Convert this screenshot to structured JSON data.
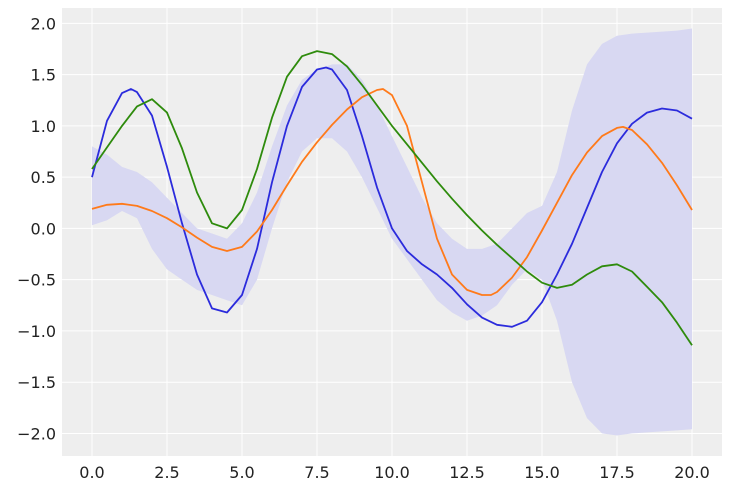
{
  "chart_data": {
    "type": "line",
    "title": "",
    "xlabel": "",
    "ylabel": "",
    "xlim": [
      -1.0,
      21.0
    ],
    "ylim": [
      -2.22,
      2.15
    ],
    "grid": true,
    "x_ticks": [
      0,
      2.5,
      5,
      7.5,
      10,
      12.5,
      15,
      17.5,
      20
    ],
    "x_tick_labels": [
      "0.0",
      "2.5",
      "5.0",
      "7.5",
      "10.0",
      "12.5",
      "15.0",
      "17.5",
      "20.0"
    ],
    "y_ticks": [
      2.0,
      1.5,
      1.0,
      0.5,
      0.0,
      -0.5,
      -1.0,
      -1.5,
      -2.0
    ],
    "y_tick_labels": [
      "2.0",
      "1.5",
      "1.0",
      "0.5",
      "0.0",
      "−0.5",
      "−1.0",
      "−1.5",
      "−2.0"
    ],
    "band": {
      "color": "#d8d8f2",
      "x": [
        0,
        0.5,
        1.0,
        1.5,
        2.0,
        2.5,
        3.0,
        3.5,
        4.0,
        4.5,
        5.0,
        5.5,
        6.0,
        6.5,
        7.0,
        7.5,
        8.0,
        8.5,
        9.0,
        9.5,
        10.0,
        10.5,
        11.0,
        11.5,
        12.0,
        12.5,
        13.0,
        13.5,
        14.0,
        14.5,
        15.0,
        15.5,
        16.0,
        16.5,
        17.0,
        17.5,
        18.0,
        18.5,
        19.0,
        19.5,
        20.0
      ],
      "upper": [
        0.8,
        0.72,
        0.6,
        0.55,
        0.45,
        0.3,
        0.15,
        0.0,
        -0.05,
        -0.1,
        0.05,
        0.35,
        0.8,
        1.2,
        1.45,
        1.55,
        1.6,
        1.6,
        1.45,
        1.2,
        0.9,
        0.6,
        0.3,
        0.05,
        -0.1,
        -0.2,
        -0.2,
        -0.15,
        0.0,
        0.15,
        0.22,
        0.55,
        1.15,
        1.6,
        1.8,
        1.88,
        1.9,
        1.91,
        1.92,
        1.93,
        1.95
      ],
      "lower": [
        0.03,
        0.08,
        0.17,
        0.1,
        -0.2,
        -0.4,
        -0.5,
        -0.6,
        -0.65,
        -0.7,
        -0.75,
        -0.5,
        0.0,
        0.45,
        0.75,
        0.88,
        0.88,
        0.75,
        0.5,
        0.2,
        -0.1,
        -0.3,
        -0.5,
        -0.7,
        -0.82,
        -0.9,
        -0.85,
        -0.75,
        -0.55,
        -0.4,
        -0.5,
        -0.9,
        -1.5,
        -1.85,
        -2.0,
        -2.02,
        -2.0,
        -1.99,
        -1.98,
        -1.97,
        -1.96
      ]
    },
    "series": [
      {
        "color": "#2b2bdc",
        "x": [
          0,
          0.5,
          1.0,
          1.3,
          1.5,
          2.0,
          2.5,
          3.0,
          3.5,
          4.0,
          4.5,
          5.0,
          5.5,
          6.0,
          6.5,
          7.0,
          7.5,
          7.8,
          8.0,
          8.5,
          9.0,
          9.5,
          10.0,
          10.5,
          11.0,
          11.5,
          12.0,
          12.5,
          13.0,
          13.5,
          14.0,
          14.5,
          15.0,
          15.5,
          16.0,
          16.5,
          17.0,
          17.5,
          18.0,
          18.5,
          19.0,
          19.5,
          20.0
        ],
        "y": [
          0.5,
          1.05,
          1.32,
          1.36,
          1.33,
          1.1,
          0.6,
          0.05,
          -0.45,
          -0.78,
          -0.82,
          -0.65,
          -0.2,
          0.45,
          1.0,
          1.38,
          1.55,
          1.57,
          1.55,
          1.35,
          0.9,
          0.4,
          0.0,
          -0.22,
          -0.35,
          -0.45,
          -0.58,
          -0.74,
          -0.87,
          -0.94,
          -0.96,
          -0.9,
          -0.72,
          -0.45,
          -0.15,
          0.2,
          0.55,
          0.83,
          1.02,
          1.13,
          1.17,
          1.15,
          1.07
        ]
      },
      {
        "color": "#ff7a1a",
        "x": [
          0,
          0.5,
          1.0,
          1.5,
          2.0,
          2.5,
          3.0,
          3.5,
          4.0,
          4.5,
          5.0,
          5.5,
          6.0,
          6.5,
          7.0,
          7.5,
          8.0,
          8.5,
          9.0,
          9.5,
          9.7,
          10.0,
          10.5,
          11.0,
          11.5,
          12.0,
          12.5,
          13.0,
          13.3,
          13.5,
          14.0,
          14.5,
          15.0,
          15.5,
          16.0,
          16.5,
          17.0,
          17.5,
          17.7,
          18.0,
          18.5,
          19.0,
          19.5,
          20.0
        ],
        "y": [
          0.19,
          0.23,
          0.24,
          0.22,
          0.17,
          0.1,
          0.01,
          -0.09,
          -0.18,
          -0.22,
          -0.18,
          -0.03,
          0.18,
          0.42,
          0.65,
          0.84,
          1.01,
          1.16,
          1.28,
          1.35,
          1.36,
          1.3,
          1.0,
          0.45,
          -0.1,
          -0.45,
          -0.6,
          -0.65,
          -0.65,
          -0.62,
          -0.48,
          -0.28,
          -0.02,
          0.25,
          0.52,
          0.74,
          0.9,
          0.98,
          0.99,
          0.96,
          0.82,
          0.64,
          0.42,
          0.18
        ]
      },
      {
        "color": "#2e8b0c",
        "x": [
          0,
          0.5,
          1.0,
          1.5,
          2.0,
          2.5,
          3.0,
          3.5,
          4.0,
          4.5,
          5.0,
          5.5,
          6.0,
          6.5,
          7.0,
          7.5,
          8.0,
          8.5,
          9.0,
          9.5,
          10.0,
          10.5,
          11.0,
          11.5,
          12.0,
          12.5,
          13.0,
          13.5,
          14.0,
          14.5,
          15.0,
          15.5,
          16.0,
          16.5,
          17.0,
          17.5,
          18.0,
          18.5,
          19.0,
          19.5,
          20.0
        ],
        "y": [
          0.58,
          0.79,
          1.0,
          1.19,
          1.26,
          1.13,
          0.78,
          0.35,
          0.05,
          0.0,
          0.18,
          0.58,
          1.08,
          1.48,
          1.68,
          1.73,
          1.7,
          1.58,
          1.4,
          1.2,
          1.0,
          0.82,
          0.64,
          0.46,
          0.29,
          0.13,
          -0.02,
          -0.16,
          -0.29,
          -0.42,
          -0.53,
          -0.58,
          -0.55,
          -0.45,
          -0.37,
          -0.35,
          -0.42,
          -0.57,
          -0.72,
          -0.92,
          -1.14
        ]
      }
    ]
  }
}
